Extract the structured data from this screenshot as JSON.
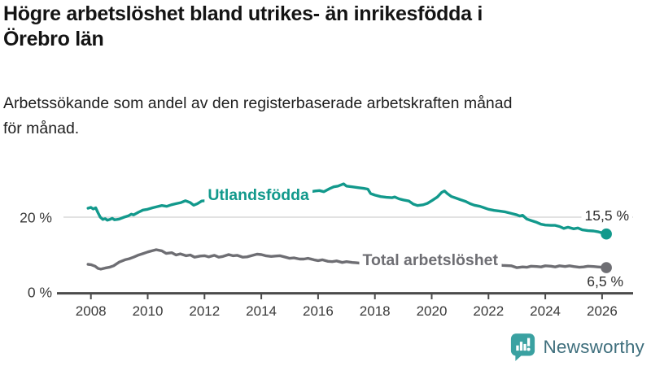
{
  "header": {
    "title_lines": [
      "Högre arbetslöshet bland utrikes- än inrikesfödda i",
      "Örebro län"
    ],
    "subtitle_lines": [
      "Arbetssökande som andel av den registerbaserade arbetskraften månad",
      "för månad."
    ]
  },
  "logo": {
    "text": "Newsworthy",
    "icon_color": "#3aa1a1",
    "text_color": "#3f6f7d"
  },
  "chart_data": {
    "type": "line",
    "title": "Högre arbetslöshet bland utrikes- än inrikesfödda i Örebro län",
    "subtitle": "Arbetssökande som andel av den registerbaserade arbetskraften månad för månad.",
    "x_unit": "decimal year (monthly data)",
    "xlim": [
      2007.8,
      2027.0
    ],
    "ylim": [
      0,
      30
    ],
    "grid": "y-gridline at 20% only",
    "legend_position": "inline labels on lines",
    "style": {
      "grid_color": "#d9d9d9",
      "axis_color": "#4a4a4a",
      "tick_label_color": "#3a3a3a",
      "value_label_color": "#2e2e2e",
      "background": "#ffffff"
    },
    "yticks": [
      {
        "value": 0,
        "label": "0 %"
      },
      {
        "value": 20,
        "label": "20 %"
      }
    ],
    "xticks": [
      {
        "value": 2008,
        "label": "2008"
      },
      {
        "value": 2010,
        "label": "2010"
      },
      {
        "value": 2012,
        "label": "2012"
      },
      {
        "value": 2014,
        "label": "2014"
      },
      {
        "value": 2016,
        "label": "2016"
      },
      {
        "value": 2018,
        "label": "2018"
      },
      {
        "value": 2020,
        "label": "2020"
      },
      {
        "value": 2022,
        "label": "2022"
      },
      {
        "value": 2024,
        "label": "2024"
      },
      {
        "value": 2026,
        "label": "2026"
      }
    ],
    "series": [
      {
        "id": "utlandsfodda",
        "name": "Utlandsfödda",
        "label_text": "Utlandsfödda",
        "label_pos": [
          2013.9,
          26.1
        ],
        "end_label": "15,5 %",
        "end_value": 15.5,
        "color": "#12998c",
        "points": [
          [
            2007.9,
            22.4
          ],
          [
            2008.0,
            22.6
          ],
          [
            2008.08,
            22.2
          ],
          [
            2008.17,
            22.5
          ],
          [
            2008.25,
            21.2
          ],
          [
            2008.33,
            20.0
          ],
          [
            2008.42,
            19.4
          ],
          [
            2008.5,
            19.6
          ],
          [
            2008.58,
            19.2
          ],
          [
            2008.67,
            19.4
          ],
          [
            2008.75,
            19.7
          ],
          [
            2008.83,
            19.3
          ],
          [
            2008.92,
            19.4
          ],
          [
            2009.0,
            19.5
          ],
          [
            2009.17,
            20.0
          ],
          [
            2009.33,
            20.4
          ],
          [
            2009.42,
            20.8
          ],
          [
            2009.5,
            20.6
          ],
          [
            2009.67,
            21.3
          ],
          [
            2009.83,
            21.9
          ],
          [
            2010.0,
            22.1
          ],
          [
            2010.17,
            22.5
          ],
          [
            2010.33,
            22.8
          ],
          [
            2010.5,
            23.1
          ],
          [
            2010.67,
            22.9
          ],
          [
            2010.83,
            23.3
          ],
          [
            2011.0,
            23.6
          ],
          [
            2011.17,
            23.9
          ],
          [
            2011.33,
            24.4
          ],
          [
            2011.5,
            23.9
          ],
          [
            2011.62,
            23.2
          ],
          [
            2011.75,
            23.6
          ],
          [
            2011.9,
            24.3
          ],
          [
            2012.0,
            24.4
          ],
          [
            2012.25,
            24.7
          ],
          [
            2012.5,
            24.9
          ],
          [
            2012.75,
            25.0
          ],
          [
            2013.0,
            25.2
          ],
          [
            2013.5,
            25.5
          ],
          [
            2014.0,
            25.8
          ],
          [
            2014.5,
            26.0
          ],
          [
            2015.0,
            26.2
          ],
          [
            2015.5,
            26.5
          ],
          [
            2015.9,
            27.0
          ],
          [
            2016.05,
            27.1
          ],
          [
            2016.2,
            26.8
          ],
          [
            2016.4,
            27.6
          ],
          [
            2016.55,
            28.1
          ],
          [
            2016.7,
            28.3
          ],
          [
            2016.9,
            28.9
          ],
          [
            2017.0,
            28.3
          ],
          [
            2017.2,
            28.1
          ],
          [
            2017.4,
            27.9
          ],
          [
            2017.6,
            27.7
          ],
          [
            2017.75,
            27.5
          ],
          [
            2017.85,
            26.3
          ],
          [
            2018.0,
            25.9
          ],
          [
            2018.2,
            25.5
          ],
          [
            2018.4,
            25.3
          ],
          [
            2018.6,
            25.2
          ],
          [
            2018.7,
            25.4
          ],
          [
            2018.85,
            24.9
          ],
          [
            2019.0,
            24.6
          ],
          [
            2019.2,
            24.3
          ],
          [
            2019.35,
            23.5
          ],
          [
            2019.5,
            23.1
          ],
          [
            2019.7,
            23.3
          ],
          [
            2019.85,
            23.7
          ],
          [
            2020.0,
            24.4
          ],
          [
            2020.2,
            25.4
          ],
          [
            2020.35,
            26.6
          ],
          [
            2020.45,
            27.0
          ],
          [
            2020.55,
            26.3
          ],
          [
            2020.7,
            25.5
          ],
          [
            2020.85,
            25.1
          ],
          [
            2021.0,
            24.7
          ],
          [
            2021.2,
            24.2
          ],
          [
            2021.35,
            23.6
          ],
          [
            2021.5,
            23.2
          ],
          [
            2021.7,
            22.9
          ],
          [
            2021.85,
            22.5
          ],
          [
            2022.0,
            22.1
          ],
          [
            2022.2,
            21.8
          ],
          [
            2022.4,
            21.6
          ],
          [
            2022.6,
            21.4
          ],
          [
            2022.8,
            21.0
          ],
          [
            2023.0,
            20.6
          ],
          [
            2023.1,
            20.3
          ],
          [
            2023.2,
            20.5
          ],
          [
            2023.35,
            19.5
          ],
          [
            2023.5,
            19.1
          ],
          [
            2023.7,
            18.6
          ],
          [
            2023.85,
            18.1
          ],
          [
            2024.0,
            17.9
          ],
          [
            2024.2,
            17.8
          ],
          [
            2024.35,
            17.8
          ],
          [
            2024.5,
            17.5
          ],
          [
            2024.65,
            17.0
          ],
          [
            2024.8,
            17.3
          ],
          [
            2025.0,
            16.9
          ],
          [
            2025.15,
            17.1
          ],
          [
            2025.3,
            16.6
          ],
          [
            2025.5,
            16.4
          ],
          [
            2025.7,
            16.3
          ],
          [
            2025.85,
            16.1
          ],
          [
            2026.0,
            15.8
          ],
          [
            2026.15,
            15.5
          ]
        ]
      },
      {
        "id": "total",
        "name": "Total arbetslöshet",
        "label_text": "Total arbetslöshet",
        "label_pos": [
          2019.95,
          8.7
        ],
        "end_label": "6,5 %",
        "end_value": 6.5,
        "color": "#6e6e73",
        "points": [
          [
            2007.9,
            7.4
          ],
          [
            2008.0,
            7.3
          ],
          [
            2008.15,
            6.9
          ],
          [
            2008.25,
            6.3
          ],
          [
            2008.35,
            6.1
          ],
          [
            2008.5,
            6.4
          ],
          [
            2008.65,
            6.6
          ],
          [
            2008.8,
            7.0
          ],
          [
            2009.0,
            8.0
          ],
          [
            2009.2,
            8.6
          ],
          [
            2009.35,
            8.9
          ],
          [
            2009.5,
            9.3
          ],
          [
            2009.65,
            9.8
          ],
          [
            2009.85,
            10.3
          ],
          [
            2010.0,
            10.7
          ],
          [
            2010.15,
            11.0
          ],
          [
            2010.3,
            11.3
          ],
          [
            2010.5,
            11.0
          ],
          [
            2010.65,
            10.3
          ],
          [
            2010.85,
            10.5
          ],
          [
            2011.0,
            9.9
          ],
          [
            2011.15,
            10.2
          ],
          [
            2011.35,
            9.7
          ],
          [
            2011.5,
            9.9
          ],
          [
            2011.65,
            9.3
          ],
          [
            2011.85,
            9.6
          ],
          [
            2012.0,
            9.7
          ],
          [
            2012.15,
            9.4
          ],
          [
            2012.35,
            9.8
          ],
          [
            2012.5,
            9.3
          ],
          [
            2012.65,
            9.5
          ],
          [
            2012.85,
            10.0
          ],
          [
            2013.0,
            9.7
          ],
          [
            2013.15,
            9.8
          ],
          [
            2013.35,
            9.3
          ],
          [
            2013.5,
            9.4
          ],
          [
            2013.65,
            9.7
          ],
          [
            2013.85,
            10.1
          ],
          [
            2014.0,
            10.0
          ],
          [
            2014.15,
            9.7
          ],
          [
            2014.35,
            9.5
          ],
          [
            2014.5,
            9.6
          ],
          [
            2014.65,
            9.7
          ],
          [
            2014.85,
            9.3
          ],
          [
            2015.0,
            9.0
          ],
          [
            2015.15,
            9.1
          ],
          [
            2015.35,
            8.8
          ],
          [
            2015.5,
            8.8
          ],
          [
            2015.65,
            9.0
          ],
          [
            2015.85,
            8.6
          ],
          [
            2016.0,
            8.4
          ],
          [
            2016.15,
            8.6
          ],
          [
            2016.35,
            8.2
          ],
          [
            2016.5,
            8.1
          ],
          [
            2016.65,
            8.3
          ],
          [
            2016.85,
            7.9
          ],
          [
            2017.0,
            8.1
          ],
          [
            2017.2,
            7.9
          ],
          [
            2017.35,
            7.8
          ],
          [
            2017.6,
            7.6
          ],
          [
            2018.0,
            7.4
          ],
          [
            2018.5,
            7.1
          ],
          [
            2019.0,
            6.9
          ],
          [
            2019.5,
            6.8
          ],
          [
            2020.0,
            7.2
          ],
          [
            2020.3,
            8.7
          ],
          [
            2020.5,
            9.3
          ],
          [
            2020.75,
            9.0
          ],
          [
            2021.0,
            8.6
          ],
          [
            2021.5,
            7.9
          ],
          [
            2022.0,
            7.4
          ],
          [
            2022.5,
            7.1
          ],
          [
            2022.8,
            7.0
          ],
          [
            2023.0,
            6.5
          ],
          [
            2023.2,
            6.7
          ],
          [
            2023.35,
            6.6
          ],
          [
            2023.5,
            6.9
          ],
          [
            2023.7,
            6.8
          ],
          [
            2023.85,
            6.7
          ],
          [
            2024.0,
            7.0
          ],
          [
            2024.2,
            6.9
          ],
          [
            2024.35,
            6.7
          ],
          [
            2024.5,
            7.0
          ],
          [
            2024.7,
            6.8
          ],
          [
            2024.85,
            7.0
          ],
          [
            2025.0,
            6.8
          ],
          [
            2025.2,
            6.6
          ],
          [
            2025.35,
            6.7
          ],
          [
            2025.5,
            6.9
          ],
          [
            2025.7,
            6.8
          ],
          [
            2025.85,
            6.7
          ],
          [
            2026.0,
            6.6
          ],
          [
            2026.15,
            6.5
          ]
        ]
      }
    ]
  }
}
